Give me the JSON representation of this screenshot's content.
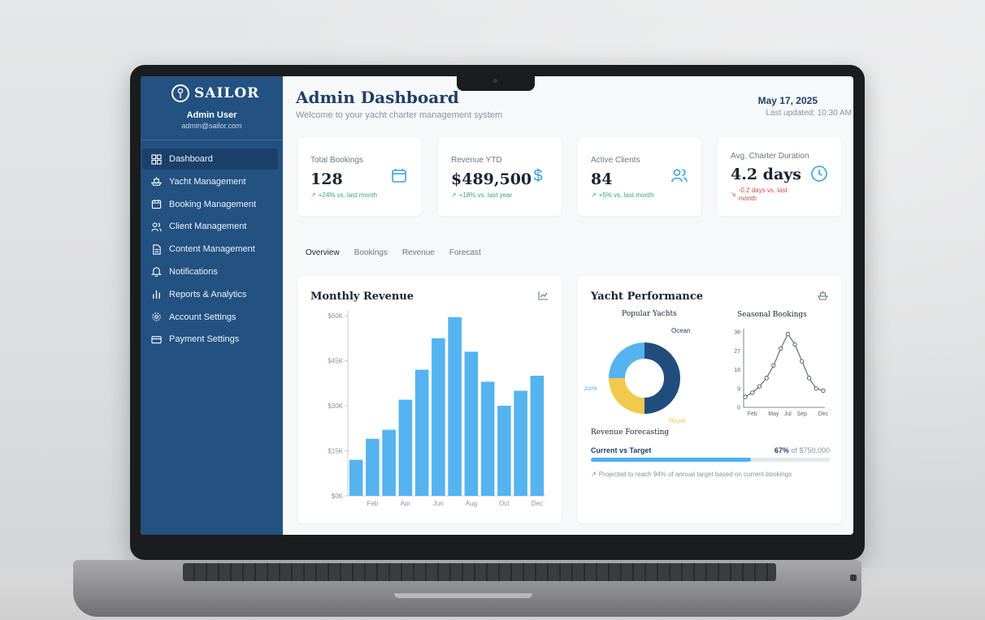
{
  "brand": {
    "name": "SAILOR"
  },
  "user": {
    "name": "Admin User",
    "email": "admin@sailor.com"
  },
  "sidebar": {
    "items": [
      {
        "label": "Dashboard",
        "icon": "grid-icon",
        "active": true
      },
      {
        "label": "Yacht Management",
        "icon": "ship-icon"
      },
      {
        "label": "Booking Management",
        "icon": "calendar-icon"
      },
      {
        "label": "Client Management",
        "icon": "users-icon"
      },
      {
        "label": "Content Management",
        "icon": "file-icon"
      },
      {
        "label": "Notifications",
        "icon": "bell-icon"
      },
      {
        "label": "Reports & Analytics",
        "icon": "bar-chart-icon"
      },
      {
        "label": "Account Settings",
        "icon": "gear-icon"
      },
      {
        "label": "Payment Settings",
        "icon": "credit-card-icon"
      }
    ]
  },
  "header": {
    "title": "Admin Dashboard",
    "subtitle": "Welcome to your yacht charter management system",
    "date": "May 17, 2025",
    "last_updated": "Last updated: 10:30 AM"
  },
  "stats": [
    {
      "label": "Total Bookings",
      "value": "128",
      "delta": "+24% vs. last month",
      "icon": "calendar-icon"
    },
    {
      "label": "Revenue YTD",
      "value": "$489,500",
      "delta": "+18% vs. last year",
      "icon": "dollar-icon"
    },
    {
      "label": "Active Clients",
      "value": "84",
      "delta": "+5% vs. last month",
      "icon": "users-icon"
    },
    {
      "label": "Avg. Charter Duration",
      "value": "4.2 days",
      "delta": "-0.2 days vs. last month",
      "icon": "clock-icon"
    }
  ],
  "tabs": [
    {
      "label": "Overview",
      "active": true
    },
    {
      "label": "Bookings"
    },
    {
      "label": "Revenue"
    },
    {
      "label": "Forecast"
    }
  ],
  "monthly_revenue": {
    "title": "Monthly Revenue",
    "icon": "line-chart-icon"
  },
  "yacht_performance": {
    "title": "Yacht Performance",
    "icon": "ship-icon",
    "popular_label": "Popular Yachts",
    "seasonal_label": "Seasonal Bookings",
    "forecasting_label": "Revenue Forecasting",
    "current_vs_target": "Current vs Target",
    "progress_pct_text": "67%",
    "progress_of": "of $750,000",
    "progress_fraction": 0.67,
    "note": "Projected to reach 94% of annual target based on current bookings"
  },
  "colors": {
    "sidebar": "#235182",
    "accent": "#4db0f0",
    "ocean": "#204d7c",
    "azure": "#55b3f0",
    "royal": "#f2c94c",
    "positive": "#3aa776",
    "negative": "#d04a4a"
  },
  "chart_data": [
    {
      "type": "bar",
      "title": "Monthly Revenue",
      "categories": [
        "Jan",
        "Feb",
        "Mar",
        "Apr",
        "May",
        "Jun",
        "Jul",
        "Aug",
        "Sep",
        "Oct",
        "Nov",
        "Dec"
      ],
      "tick_labels_x": [
        "Feb",
        "Apr",
        "Jun",
        "Aug",
        "Oct",
        "Dec"
      ],
      "values": [
        12000,
        19000,
        22000,
        32000,
        42000,
        52500,
        59500,
        48000,
        38000,
        30000,
        35000,
        40000
      ],
      "ylim": [
        0,
        60000
      ],
      "yticks": [
        "$0K",
        "$15K",
        "$30K",
        "$45K",
        "$60K"
      ],
      "grid": false
    },
    {
      "type": "pie",
      "title": "Popular Yachts",
      "labels": [
        "Ocean",
        "Royal",
        "zure"
      ],
      "values": [
        50,
        25,
        25
      ],
      "donut": true
    },
    {
      "type": "line",
      "title": "Seasonal Bookings",
      "x": [
        "Jan",
        "Feb",
        "Mar",
        "Apr",
        "May",
        "Jun",
        "Jul",
        "Aug",
        "Sep",
        "Oct",
        "Nov",
        "Dec"
      ],
      "tick_labels_x": [
        "Feb",
        "May",
        "Jul",
        "Sep",
        "Dec"
      ],
      "values": [
        5,
        7,
        10,
        14,
        20,
        28,
        35,
        30,
        22,
        14,
        9,
        8
      ],
      "ylim": [
        0,
        36
      ],
      "yticks": [
        "0",
        "9",
        "18",
        "27",
        "36"
      ]
    }
  ]
}
